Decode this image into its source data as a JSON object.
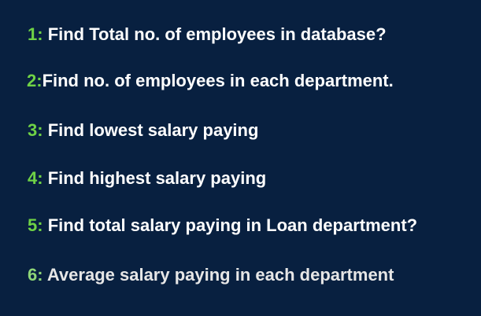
{
  "questions": [
    {
      "number": "1:",
      "text": " Find Total no. of employees in database?"
    },
    {
      "number": "2:",
      "text": "Find no. of employees in each department."
    },
    {
      "number": "3:",
      "text": "Find lowest salary paying"
    },
    {
      "number": "4:",
      "text": "Find highest salary paying"
    },
    {
      "number": "5:",
      "text": "Find total salary paying in Loan department?"
    },
    {
      "number": "6:",
      "text": "Average salary paying in each department"
    }
  ],
  "colors": {
    "background": "#082040",
    "number": "#6fd246",
    "text": "#ffffff"
  }
}
